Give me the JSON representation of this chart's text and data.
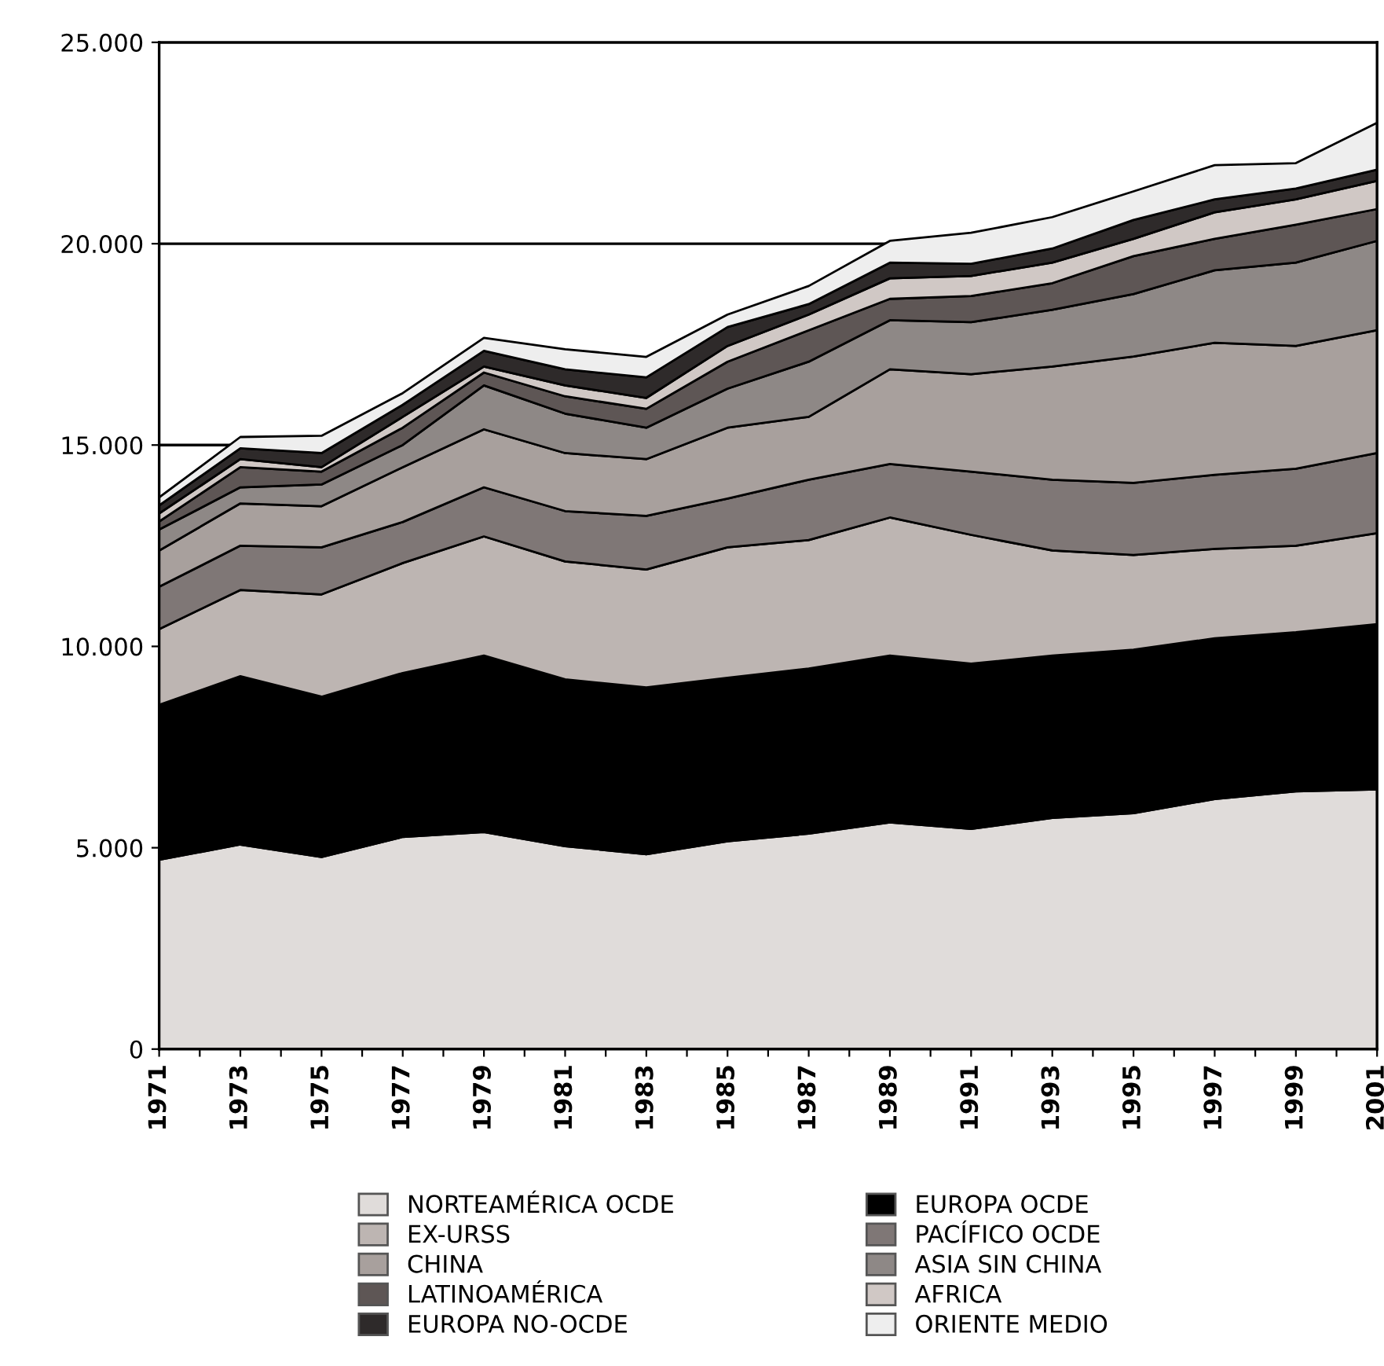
{
  "chart_data": {
    "type": "area",
    "stacked": true,
    "x": [
      1971,
      1973,
      1975,
      1977,
      1979,
      1981,
      1983,
      1985,
      1987,
      1989,
      1991,
      1993,
      1995,
      1997,
      1999,
      2001
    ],
    "series": [
      {
        "name": "NORTEAMÉRICA OCDE",
        "color": "#e0dcda",
        "values": [
          4700,
          5080,
          4770,
          5270,
          5390,
          5040,
          4840,
          5160,
          5350,
          5630,
          5470,
          5740,
          5860,
          6210,
          6400,
          6450
        ]
      },
      {
        "name": "EUROPA OCDE",
        "color": "#000000",
        "values": [
          3850,
          4180,
          3980,
          4070,
          4380,
          4140,
          4140,
          4060,
          4100,
          4140,
          4100,
          4030,
          4060,
          3990,
          3950,
          4100
        ]
      },
      {
        "name": "EX-URSS",
        "color": "#bdb5b2",
        "values": [
          1880,
          2140,
          2540,
          2730,
          2960,
          2930,
          2930,
          3240,
          3190,
          3430,
          3200,
          2610,
          2350,
          2220,
          2150,
          2260
        ]
      },
      {
        "name": "PACÍFICO OCDE",
        "color": "#7f7776",
        "values": [
          1050,
          1100,
          1170,
          1020,
          1220,
          1250,
          1330,
          1210,
          1500,
          1330,
          1570,
          1760,
          1790,
          1840,
          1910,
          1990
        ]
      },
      {
        "name": "CHINA",
        "color": "#a8a09d",
        "values": [
          900,
          1050,
          1020,
          1360,
          1440,
          1440,
          1410,
          1760,
          1560,
          2350,
          2420,
          2810,
          3140,
          3280,
          3050,
          3050
        ]
      },
      {
        "name": "ASIA SIN CHINA",
        "color": "#8e8886",
        "values": [
          520,
          400,
          540,
          550,
          1090,
          980,
          780,
          970,
          1370,
          1220,
          1290,
          1410,
          1550,
          1800,
          2070,
          2220
        ]
      },
      {
        "name": "LATINOAMÉRICA",
        "color": "#5e5655",
        "values": [
          200,
          500,
          320,
          430,
          320,
          430,
          470,
          670,
          780,
          530,
          650,
          660,
          940,
          780,
          940,
          790
        ]
      },
      {
        "name": "AFRICA",
        "color": "#d0c8c5",
        "values": [
          200,
          200,
          110,
          270,
          150,
          270,
          270,
          390,
          390,
          510,
          500,
          510,
          430,
          660,
          630,
          700
        ]
      },
      {
        "name": "EUROPA NO-OCDE",
        "color": "#2e2a2a",
        "values": [
          200,
          270,
          350,
          300,
          390,
          400,
          510,
          470,
          260,
          390,
          300,
          350,
          470,
          320,
          270,
          280
        ]
      },
      {
        "name": "ORIENTE MEDIO",
        "color": "#eeeeee",
        "values": [
          200,
          280,
          430,
          290,
          320,
          500,
          510,
          310,
          450,
          540,
          770,
          780,
          710,
          850,
          630,
          1160
        ]
      }
    ],
    "xlim": [
      1971,
      2001
    ],
    "xticks": [
      1971,
      {
        "value": 1972,
        "label": null
      },
      1973,
      {
        "value": 1974,
        "label": null
      },
      1975,
      {
        "value": 1976,
        "label": null
      },
      1977,
      {
        "value": 1978,
        "label": null
      },
      1979,
      {
        "value": 1980,
        "label": null
      },
      1981,
      {
        "value": 1982,
        "label": null
      },
      1983,
      {
        "value": 1984,
        "label": null
      },
      1985,
      {
        "value": 1986,
        "label": null
      },
      1987,
      {
        "value": 1988,
        "label": null
      },
      1989,
      {
        "value": 1990,
        "label": null
      },
      1991,
      {
        "value": 1992,
        "label": null
      },
      1993,
      {
        "value": 1994,
        "label": null
      },
      1995,
      {
        "value": 1996,
        "label": null
      },
      1997,
      {
        "value": 1998,
        "label": null
      },
      1999,
      {
        "value": 2000,
        "label": null
      },
      2001
    ],
    "ylim": [
      0,
      25000
    ],
    "yticks": [
      0,
      {
        "value": 5000,
        "label": "5.000"
      },
      {
        "value": 10000,
        "label": "10.000"
      },
      {
        "value": 15000,
        "label": "15.000"
      },
      {
        "value": 20000,
        "label": "20.000"
      },
      {
        "value": 25000,
        "label": "25.000"
      }
    ],
    "grid": "y",
    "legend": "bottom"
  }
}
